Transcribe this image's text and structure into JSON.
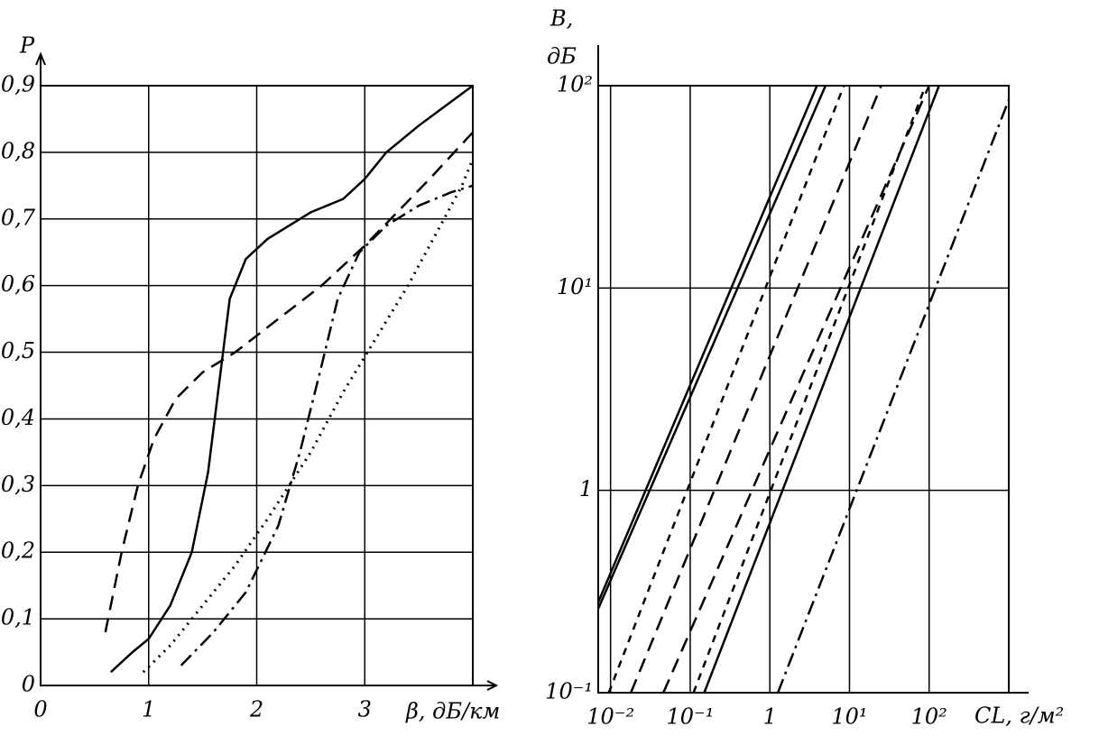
{
  "chart_data": [
    {
      "type": "line",
      "ylabel": "P",
      "xlabel": "β, дБ/км",
      "xlim": [
        0,
        4
      ],
      "ylim": [
        0,
        0.9
      ],
      "xticks": [
        0,
        1,
        2,
        3
      ],
      "yticks": [
        0,
        {
          "value": 0.1,
          "label": "0,1"
        },
        {
          "value": 0.2,
          "label": "0,2"
        },
        {
          "value": 0.3,
          "label": "0,3"
        },
        {
          "value": 0.4,
          "label": "0,4"
        },
        {
          "value": 0.5,
          "label": "0,5"
        },
        {
          "value": 0.6,
          "label": "0,6"
        },
        {
          "value": 0.7,
          "label": "0,7"
        },
        {
          "value": 0.8,
          "label": "0,8"
        },
        {
          "value": 0.9,
          "label": "0,9"
        }
      ],
      "grid": true,
      "series": [
        {
          "style": "solid",
          "color": "#000000",
          "x": [
            0.65,
            0.85,
            1.0,
            1.2,
            1.4,
            1.55,
            1.65,
            1.75,
            1.9,
            2.1,
            2.5,
            2.8,
            3.0,
            3.2,
            3.5,
            4.0
          ],
          "values": [
            0.02,
            0.05,
            0.07,
            0.12,
            0.2,
            0.32,
            0.45,
            0.58,
            0.64,
            0.67,
            0.71,
            0.73,
            0.76,
            0.8,
            0.84,
            0.9
          ]
        },
        {
          "style": "dash",
          "color": "#000000",
          "x": [
            0.6,
            0.75,
            0.9,
            1.05,
            1.25,
            1.5,
            1.8,
            2.2,
            2.6,
            3.0,
            3.3,
            3.6,
            4.0
          ],
          "values": [
            0.08,
            0.2,
            0.3,
            0.37,
            0.43,
            0.47,
            0.5,
            0.55,
            0.6,
            0.66,
            0.71,
            0.76,
            0.83
          ]
        },
        {
          "style": "dashdot",
          "color": "#000000",
          "x": [
            1.3,
            1.6,
            1.9,
            2.2,
            2.4,
            2.6,
            2.75,
            2.95,
            3.2,
            3.5,
            3.8,
            4.0
          ],
          "values": [
            0.03,
            0.08,
            0.14,
            0.24,
            0.35,
            0.48,
            0.58,
            0.65,
            0.69,
            0.72,
            0.74,
            0.75
          ]
        },
        {
          "style": "dotted",
          "color": "#000000",
          "x": [
            0.95,
            1.2,
            1.5,
            1.8,
            2.1,
            2.5,
            2.8,
            3.1,
            3.4,
            3.7,
            3.9,
            4.0
          ],
          "values": [
            0.02,
            0.06,
            0.12,
            0.18,
            0.25,
            0.35,
            0.44,
            0.52,
            0.6,
            0.69,
            0.75,
            0.79
          ]
        }
      ]
    },
    {
      "type": "line",
      "ylabel": [
        "В,",
        "дБ"
      ],
      "xlabel": "CL, г/м²",
      "log_x": true,
      "log_y": true,
      "xlim": [
        0.007,
        1000
      ],
      "ylim": [
        0.1,
        100
      ],
      "xticks": [
        {
          "value": 0.01,
          "label": "10⁻²"
        },
        {
          "value": 0.1,
          "label": "10⁻¹"
        },
        1,
        {
          "value": 10,
          "label": "10¹"
        },
        {
          "value": 100,
          "label": "10²"
        }
      ],
      "yticks": [
        {
          "value": 0.1,
          "label": "10⁻¹"
        },
        1,
        {
          "value": 10,
          "label": "10¹"
        },
        {
          "value": 100,
          "label": "10²"
        }
      ],
      "grid": true,
      "series": [
        {
          "style": "solid",
          "color": "#000000",
          "x": [
            0.007,
            3.9
          ],
          "values": [
            0.28,
            100
          ]
        },
        {
          "style": "solid",
          "color": "#000000",
          "x": [
            0.007,
            5
          ],
          "values": [
            0.26,
            100
          ]
        },
        {
          "style": "shortdash",
          "color": "#000000",
          "x": [
            0.0095,
            8.5
          ],
          "values": [
            0.1,
            100
          ]
        },
        {
          "style": "dash",
          "color": "#000000",
          "x": [
            0.018,
            25
          ],
          "values": [
            0.1,
            100
          ]
        },
        {
          "style": "dash",
          "color": "#000000",
          "x": [
            0.046,
            100
          ],
          "values": [
            0.1,
            100
          ]
        },
        {
          "style": "shortdash",
          "color": "#000000",
          "x": [
            0.11,
            90
          ],
          "values": [
            0.1,
            100
          ]
        },
        {
          "style": "solid",
          "color": "#000000",
          "x": [
            0.15,
            133
          ],
          "values": [
            0.1,
            100
          ]
        },
        {
          "style": "dashdot",
          "color": "#000000",
          "x": [
            1.26,
            1000
          ],
          "values": [
            0.1,
            85
          ]
        }
      ]
    }
  ]
}
